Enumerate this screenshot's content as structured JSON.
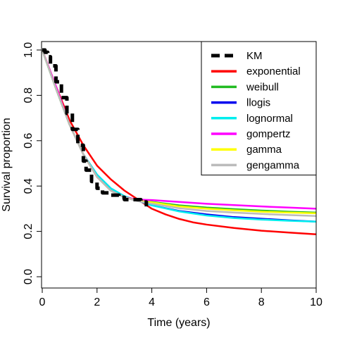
{
  "chart_data": {
    "type": "line",
    "title": "",
    "xlabel": "Time (years)",
    "ylabel": "Survival proportion",
    "xlim": [
      0,
      10
    ],
    "ylim": [
      0,
      1
    ],
    "xticks": [
      "0",
      "2",
      "4",
      "6",
      "8",
      "10"
    ],
    "yticks": [
      "0.0",
      "0.2",
      "0.4",
      "0.6",
      "0.8",
      "1.0"
    ],
    "grid": false,
    "legend_position": "top-right",
    "series": [
      {
        "name": "KM",
        "color": "#000000",
        "style": "dashed-step",
        "points": [
          [
            0,
            1.0
          ],
          [
            0.1,
            0.99
          ],
          [
            0.2,
            0.97
          ],
          [
            0.3,
            0.93
          ],
          [
            0.5,
            0.86
          ],
          [
            0.7,
            0.79
          ],
          [
            0.9,
            0.72
          ],
          [
            1.1,
            0.65
          ],
          [
            1.3,
            0.58
          ],
          [
            1.5,
            0.51
          ],
          [
            1.6,
            0.47
          ],
          [
            1.8,
            0.42
          ],
          [
            2.0,
            0.39
          ],
          [
            2.2,
            0.37
          ],
          [
            2.5,
            0.36
          ],
          [
            2.8,
            0.35
          ],
          [
            3.0,
            0.34
          ],
          [
            3.3,
            0.34
          ],
          [
            3.6,
            0.33
          ],
          [
            3.8,
            0.31
          ]
        ]
      },
      {
        "name": "exponential",
        "color": "#ff0000",
        "points": [
          [
            0,
            1.0
          ],
          [
            0.5,
            0.84
          ],
          [
            1.0,
            0.69
          ],
          [
            1.5,
            0.58
          ],
          [
            2.0,
            0.49
          ],
          [
            2.5,
            0.43
          ],
          [
            3.0,
            0.38
          ],
          [
            3.5,
            0.34
          ],
          [
            4.0,
            0.3
          ],
          [
            4.5,
            0.275
          ],
          [
            5.0,
            0.255
          ],
          [
            5.5,
            0.24
          ],
          [
            6.0,
            0.23
          ],
          [
            7.0,
            0.215
          ],
          [
            8.0,
            0.203
          ],
          [
            9.0,
            0.195
          ],
          [
            10.0,
            0.187
          ]
        ]
      },
      {
        "name": "weibull",
        "color": "#22bb22",
        "points": [
          [
            0,
            1.0
          ],
          [
            0.5,
            0.83
          ],
          [
            1.0,
            0.67
          ],
          [
            1.5,
            0.54
          ],
          [
            2.0,
            0.44
          ],
          [
            2.5,
            0.38
          ],
          [
            3.0,
            0.35
          ],
          [
            3.5,
            0.335
          ],
          [
            4.0,
            0.33
          ],
          [
            5.0,
            0.315
          ],
          [
            6.0,
            0.305
          ],
          [
            7.0,
            0.298
          ],
          [
            8.0,
            0.292
          ],
          [
            9.0,
            0.287
          ],
          [
            10.0,
            0.283
          ]
        ]
      },
      {
        "name": "llogis",
        "color": "#0000ee",
        "points": [
          [
            0,
            1.0
          ],
          [
            0.5,
            0.83
          ],
          [
            1.0,
            0.67
          ],
          [
            1.5,
            0.54
          ],
          [
            2.0,
            0.45
          ],
          [
            2.5,
            0.39
          ],
          [
            3.0,
            0.355
          ],
          [
            3.5,
            0.335
          ],
          [
            4.0,
            0.315
          ],
          [
            5.0,
            0.29
          ],
          [
            6.0,
            0.275
          ],
          [
            7.0,
            0.263
          ],
          [
            8.0,
            0.256
          ],
          [
            9.0,
            0.249
          ],
          [
            10.0,
            0.243
          ]
        ]
      },
      {
        "name": "lognormal",
        "color": "#00eeee",
        "points": [
          [
            0,
            1.0
          ],
          [
            0.5,
            0.83
          ],
          [
            1.0,
            0.67
          ],
          [
            1.5,
            0.54
          ],
          [
            2.0,
            0.45
          ],
          [
            2.5,
            0.39
          ],
          [
            3.0,
            0.355
          ],
          [
            3.5,
            0.335
          ],
          [
            4.0,
            0.315
          ],
          [
            5.0,
            0.288
          ],
          [
            6.0,
            0.27
          ],
          [
            7.0,
            0.259
          ],
          [
            8.0,
            0.252
          ],
          [
            9.0,
            0.247
          ],
          [
            10.0,
            0.243
          ]
        ]
      },
      {
        "name": "gompertz",
        "color": "#ff00ff",
        "points": [
          [
            0,
            1.0
          ],
          [
            0.5,
            0.84
          ],
          [
            1.0,
            0.67
          ],
          [
            1.5,
            0.54
          ],
          [
            2.0,
            0.44
          ],
          [
            2.5,
            0.38
          ],
          [
            3.0,
            0.35
          ],
          [
            3.5,
            0.34
          ],
          [
            4.0,
            0.338
          ],
          [
            5.0,
            0.33
          ],
          [
            6.0,
            0.322
          ],
          [
            7.0,
            0.316
          ],
          [
            8.0,
            0.31
          ],
          [
            9.0,
            0.305
          ],
          [
            10.0,
            0.3
          ]
        ]
      },
      {
        "name": "gamma",
        "color": "#ffff00",
        "points": [
          [
            0,
            1.0
          ],
          [
            0.5,
            0.83
          ],
          [
            1.0,
            0.67
          ],
          [
            1.5,
            0.54
          ],
          [
            2.0,
            0.44
          ],
          [
            2.5,
            0.38
          ],
          [
            3.0,
            0.35
          ],
          [
            3.5,
            0.335
          ],
          [
            4.0,
            0.328
          ],
          [
            5.0,
            0.31
          ],
          [
            6.0,
            0.3
          ],
          [
            7.0,
            0.293
          ],
          [
            8.0,
            0.287
          ],
          [
            9.0,
            0.283
          ],
          [
            10.0,
            0.28
          ]
        ]
      },
      {
        "name": "gengamma",
        "color": "#bbbbbb",
        "points": [
          [
            0,
            1.0
          ],
          [
            0.5,
            0.83
          ],
          [
            1.0,
            0.67
          ],
          [
            1.5,
            0.54
          ],
          [
            2.0,
            0.44
          ],
          [
            2.5,
            0.38
          ],
          [
            3.0,
            0.35
          ],
          [
            3.5,
            0.333
          ],
          [
            4.0,
            0.322
          ],
          [
            5.0,
            0.302
          ],
          [
            6.0,
            0.29
          ],
          [
            7.0,
            0.283
          ],
          [
            8.0,
            0.277
          ],
          [
            9.0,
            0.272
          ],
          [
            10.0,
            0.268
          ]
        ]
      }
    ]
  }
}
